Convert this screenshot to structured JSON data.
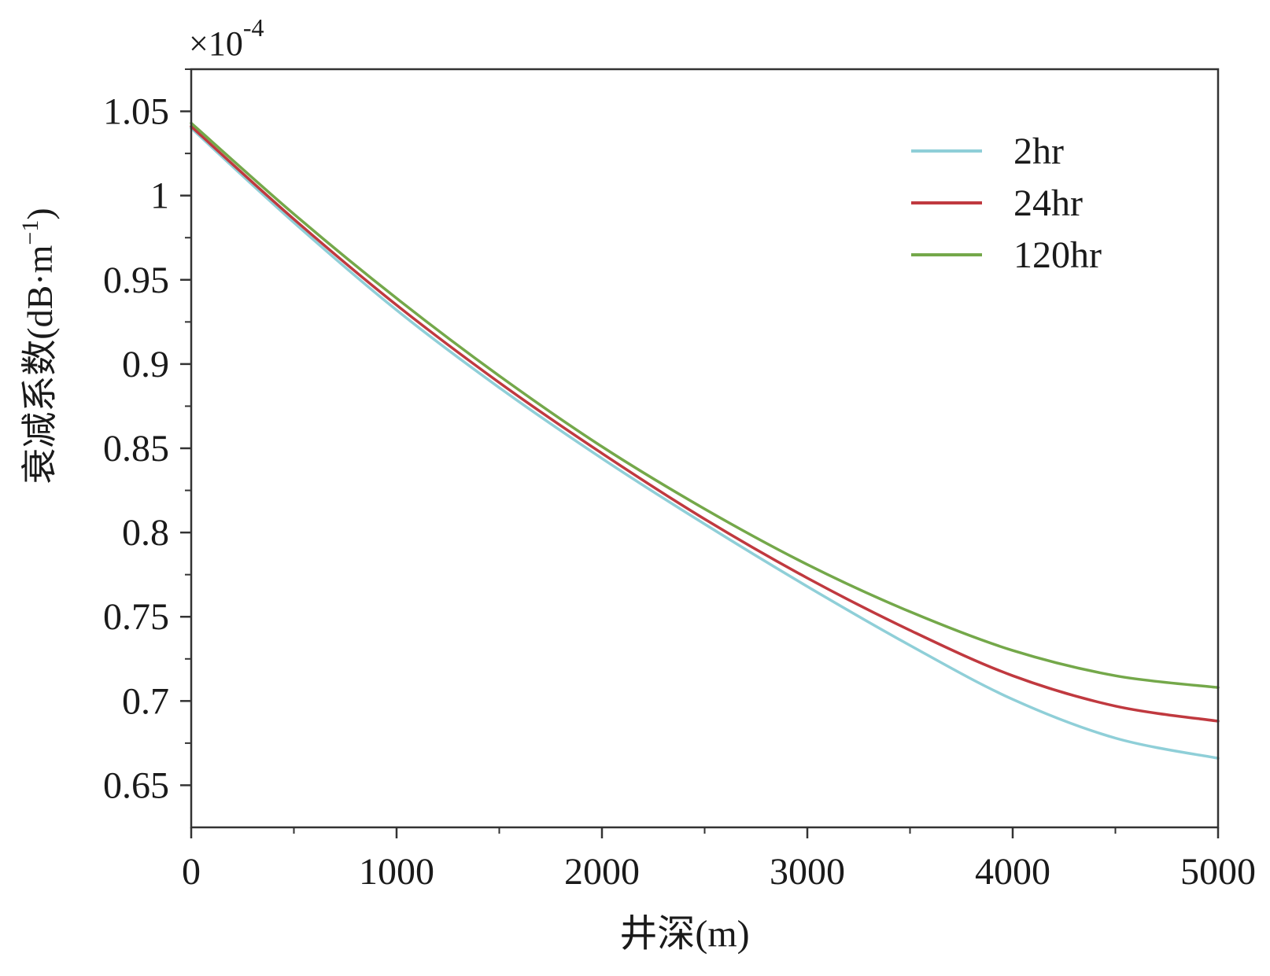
{
  "chart_data": {
    "type": "line",
    "xlabel": "井深(m)",
    "ylabel_main": "衰减系数",
    "ylabel_unit_prefix": "(dB·m",
    "ylabel_unit_exp": "−1",
    "ylabel_unit_suffix": ")",
    "scale_label_base": "×10",
    "scale_label_exp": "-4",
    "xlim": [
      0,
      5000
    ],
    "ylim": [
      0.625,
      1.075
    ],
    "x_ticks": [
      0,
      1000,
      2000,
      3000,
      4000,
      5000
    ],
    "x_tick_labels": [
      "0",
      "1000",
      "2000",
      "3000",
      "4000",
      "5000"
    ],
    "y_ticks": [
      0.65,
      0.7,
      0.75,
      0.8,
      0.85,
      0.9,
      0.95,
      1.0,
      1.05
    ],
    "y_tick_labels": [
      "0.65",
      "0.7",
      "0.75",
      "0.8",
      "0.85",
      "0.9",
      "0.95",
      "1",
      "1.05"
    ],
    "legend_position": "top-right",
    "grid": false,
    "x": [
      0,
      500,
      1000,
      1500,
      2000,
      2500,
      3000,
      3500,
      4000,
      4500,
      5000
    ],
    "series": [
      {
        "name": "2hr",
        "color": "#8fcfd8",
        "values": [
          1.04,
          0.984,
          0.932,
          0.886,
          0.844,
          0.805,
          0.768,
          0.733,
          0.701,
          0.678,
          0.666
        ]
      },
      {
        "name": "24hr",
        "color": "#c0393f",
        "values": [
          1.041,
          0.986,
          0.935,
          0.889,
          0.847,
          0.808,
          0.773,
          0.742,
          0.715,
          0.697,
          0.688
        ]
      },
      {
        "name": "120hr",
        "color": "#74a84a",
        "values": [
          1.043,
          0.989,
          0.939,
          0.893,
          0.851,
          0.814,
          0.781,
          0.753,
          0.73,
          0.715,
          0.708
        ]
      }
    ]
  }
}
